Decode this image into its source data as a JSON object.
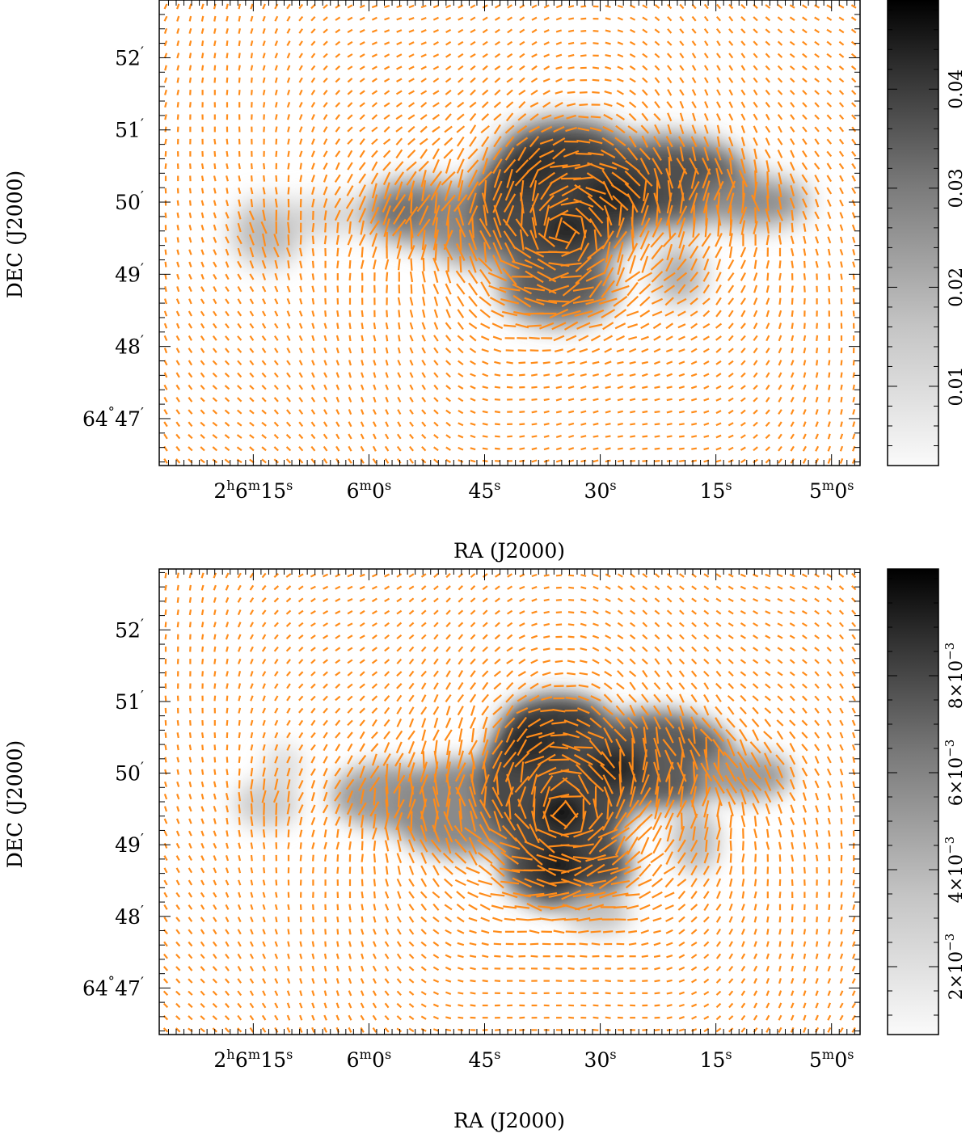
{
  "chart_data": [
    {
      "type": "heatmap",
      "panel": "top",
      "title": "",
      "xlabel": "RA (J2000)",
      "ylabel": "DEC (J2000)",
      "x_tick_labels": [
        {
          "h": "2",
          "m": "6",
          "s": "15"
        },
        {
          "h": "",
          "m": "6",
          "s": "0"
        },
        {
          "h": "",
          "m": "",
          "s": "45"
        },
        {
          "h": "",
          "m": "",
          "s": "30"
        },
        {
          "h": "",
          "m": "",
          "s": "15"
        },
        {
          "h": "",
          "m": "5",
          "s": "0"
        }
      ],
      "x_tick_seconds": [
        375,
        360,
        345,
        330,
        315,
        300
      ],
      "xlim_seconds": [
        387.2,
        296.3
      ],
      "y_tick_labels": [
        {
          "deg": "64",
          "min": "47"
        },
        {
          "deg": "",
          "min": "48"
        },
        {
          "deg": "",
          "min": "49"
        },
        {
          "deg": "",
          "min": "50"
        },
        {
          "deg": "",
          "min": "51"
        },
        {
          "deg": "",
          "min": "52"
        }
      ],
      "y_tick_arcmin": [
        47,
        48,
        49,
        50,
        51,
        52
      ],
      "ylim_arcmin": [
        46.35,
        52.8
      ],
      "colorbar": {
        "range": [
          0.002,
          0.049
        ],
        "tick_values": [
          0.01,
          0.02,
          0.03,
          0.04
        ],
        "tick_labels": [
          "0.01",
          "0.02",
          "0.03",
          "0.04"
        ],
        "colormap": "white-to-black"
      },
      "vector_color": "#ff8c1a"
    },
    {
      "type": "heatmap",
      "panel": "bottom",
      "title": "",
      "xlabel": "RA (J2000)",
      "ylabel": "DEC (J2000)",
      "x_tick_labels": [
        {
          "h": "2",
          "m": "6",
          "s": "15"
        },
        {
          "h": "",
          "m": "6",
          "s": "0"
        },
        {
          "h": "",
          "m": "",
          "s": "45"
        },
        {
          "h": "",
          "m": "",
          "s": "30"
        },
        {
          "h": "",
          "m": "",
          "s": "15"
        },
        {
          "h": "",
          "m": "5",
          "s": "0"
        }
      ],
      "x_tick_seconds": [
        375,
        360,
        345,
        330,
        315,
        300
      ],
      "xlim_seconds": [
        387.2,
        296.3
      ],
      "y_tick_labels": [
        {
          "deg": "64",
          "min": "47"
        },
        {
          "deg": "",
          "min": "48"
        },
        {
          "deg": "",
          "min": "49"
        },
        {
          "deg": "",
          "min": "50"
        },
        {
          "deg": "",
          "min": "51"
        },
        {
          "deg": "",
          "min": "52"
        }
      ],
      "y_tick_arcmin": [
        47,
        48,
        49,
        50,
        51,
        52
      ],
      "ylim_arcmin": [
        46.35,
        52.85
      ],
      "colorbar": {
        "range": [
          0.0006,
          0.0102
        ],
        "tick_values": [
          0.002,
          0.004,
          0.006,
          0.008
        ],
        "tick_labels": [
          "2×10−3",
          "4×10−3",
          "6×10−3",
          "8×10−3"
        ],
        "tick_mantissa": [
          "2",
          "4",
          "6",
          "8"
        ],
        "tick_exponent": "−3",
        "colormap": "white-to-black"
      },
      "vector_color": "#ff8c1a"
    }
  ]
}
